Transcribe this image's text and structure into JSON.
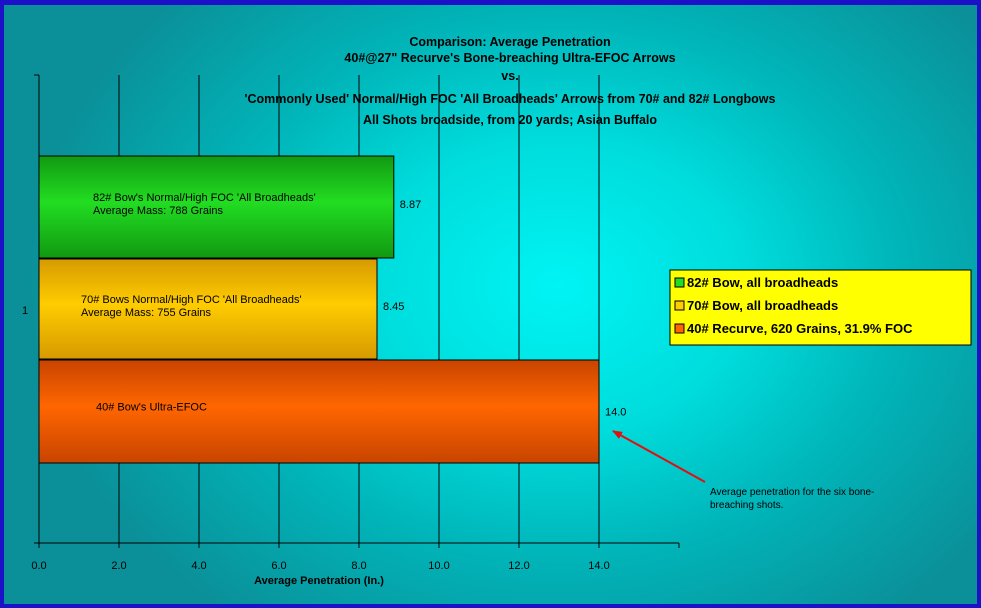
{
  "chart_data": {
    "type": "bar",
    "orientation": "horizontal",
    "title_lines": [
      "Comparison: Average Penetration",
      "40#@27\" Recurve's Bone-breaching Ultra-EFOC Arrows",
      "vs.",
      "'Commonly Used' Normal/High FOC 'All Broadheads' Arrows from 70# and 82# Longbows",
      "All Shots broadside, from 20 yards; Asian Buffalo"
    ],
    "category": "1",
    "xlabel": "Average Penetration (In.)",
    "xlim": [
      0,
      16
    ],
    "xticks": [
      "0.0",
      "2.0",
      "4.0",
      "6.0",
      "8.0",
      "10.0",
      "12.0",
      "14.0"
    ],
    "grid": "vertical",
    "legend_position": "right",
    "series": [
      {
        "name": "82# Bow, all broadheads",
        "value": 8.87,
        "value_label": "8.87",
        "color": "#22dd22",
        "color_dark": "#119911",
        "bar_text": [
          "82# Bow's Normal/High FOC 'All Broadheads'",
          "Average Mass: 788 Grains"
        ]
      },
      {
        "name": "70# Bow, all broadheads",
        "value": 8.45,
        "value_label": "8.45",
        "color": "#ffcc00",
        "color_dark": "#d69a00",
        "bar_text": [
          "70# Bows Normal/High FOC 'All Broadheads'",
          "Average Mass: 755 Grains"
        ]
      },
      {
        "name": "40# Recurve, 620 Grains, 31.9% FOC",
        "value": 14.0,
        "value_label": "14.0",
        "color": "#ff6600",
        "color_dark": "#c84400",
        "bar_text": [
          "40# Bow's Ultra-EFOC"
        ]
      }
    ],
    "annotation": {
      "text": [
        "Average penetration for the six bone-",
        "breaching shots."
      ],
      "points_to": "40# Recurve, 620 Grains, 31.9% FOC",
      "arrow_color": "#e01010"
    },
    "legend_background": "#ffff00"
  }
}
